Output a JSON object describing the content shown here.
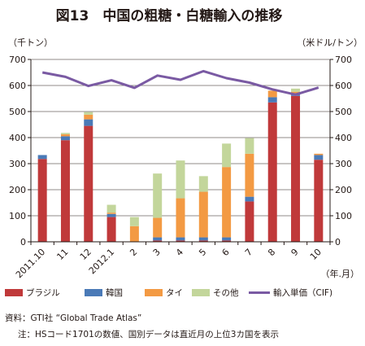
{
  "page": {
    "title": "図13　中国の粗糖・白糖輸入の推移",
    "source": "資料：GTI社 “Global Trade Atlas”",
    "note": "注：HSコード1701の数値、国別データは直近月の上位3カ国を表示"
  },
  "colors": {
    "brazil": "#c0393a",
    "korea": "#4a7ab7",
    "thailand": "#f39a43",
    "others": "#c3d69b",
    "line": "#7a5aa3",
    "axis": "#231815",
    "grid": "#231815"
  },
  "chart_data": {
    "type": "bar",
    "stacked": true,
    "categories": [
      "2011.10",
      "11",
      "12",
      "2012.1",
      "2",
      "3",
      "4",
      "5",
      "6",
      "7",
      "8",
      "9",
      "10"
    ],
    "x_unit_label": "（年.月）",
    "y_left_label": "（千トン）",
    "y_right_label": "（米ドル/トン）",
    "ylim_left": [
      0,
      700
    ],
    "ylim_right": [
      0,
      700
    ],
    "yticks": [
      0,
      100,
      200,
      300,
      400,
      500,
      600,
      700
    ],
    "grid": true,
    "legend_position": "bottom",
    "series": [
      {
        "name": "ブラジル",
        "color_key": "brazil",
        "values": [
          318,
          390,
          445,
          95,
          0,
          5,
          5,
          5,
          5,
          155,
          535,
          560,
          315
        ]
      },
      {
        "name": "韓国",
        "color_key": "korea",
        "values": [
          15,
          15,
          25,
          12,
          0,
          12,
          12,
          12,
          12,
          18,
          20,
          8,
          18
        ]
      },
      {
        "name": "タイ",
        "color_key": "thailand",
        "values": [
          0,
          8,
          18,
          5,
          60,
          75,
          150,
          175,
          270,
          165,
          25,
          8,
          5
        ]
      },
      {
        "name": "その他",
        "color_key": "others",
        "values": [
          0,
          5,
          10,
          30,
          35,
          170,
          145,
          60,
          90,
          60,
          0,
          12,
          0
        ]
      }
    ],
    "line_series": {
      "name": "輸入単価（CIF)",
      "axis": "right",
      "color_key": "line",
      "values": [
        650,
        633,
        598,
        620,
        591,
        638,
        622,
        655,
        628,
        611,
        585,
        565,
        592
      ]
    }
  }
}
